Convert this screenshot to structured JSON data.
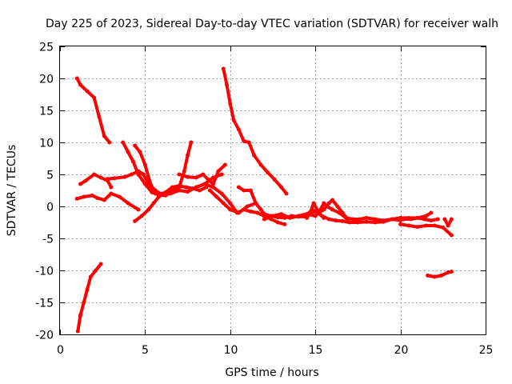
{
  "chart_data": {
    "type": "line",
    "title": "Day 225 of 2023, Sidereal Day-to-day VTEC variation (SDTVAR) for receiver walh",
    "xlabel": "GPS time / hours",
    "ylabel": "SDTVAR / TECUs",
    "xlim": [
      0,
      25
    ],
    "ylim": [
      -20,
      25
    ],
    "xticks": [
      0,
      5,
      10,
      15,
      20,
      25
    ],
    "yticks": [
      -20,
      -15,
      -10,
      -5,
      0,
      5,
      10,
      15,
      20,
      25
    ],
    "xtick_labels": [
      "0",
      "5",
      "10",
      "15",
      "20",
      "25"
    ],
    "ytick_labels": [
      "-20",
      "-15",
      "-10",
      "-5",
      "0",
      "5",
      "10",
      "15",
      "20",
      "25"
    ],
    "grid": true,
    "color": "#ff0000",
    "series": [
      {
        "name": "s1",
        "x": [
          1.0,
          1.2,
          1.6,
          2.0,
          2.3,
          2.6,
          2.9
        ],
        "y": [
          20,
          19,
          18,
          17,
          14,
          11,
          10
        ]
      },
      {
        "name": "s2",
        "x": [
          1.05,
          1.2,
          1.4,
          1.6,
          1.8,
          2.1,
          2.4
        ],
        "y": [
          -19.5,
          -17,
          -15,
          -13,
          -11,
          -10,
          -9
        ]
      },
      {
        "name": "s3",
        "x": [
          1.0,
          1.4,
          1.9,
          2.2,
          2.6,
          3.0,
          3.5,
          4.0,
          4.6
        ],
        "y": [
          1.2,
          1.5,
          1.7,
          1.3,
          1.0,
          2.0,
          1.5,
          0.5,
          -0.5
        ]
      },
      {
        "name": "s4",
        "x": [
          1.2,
          1.5,
          2.0,
          2.4,
          2.8,
          3.0
        ],
        "y": [
          3.5,
          4.0,
          5.0,
          4.5,
          4.0,
          3.0
        ]
      },
      {
        "name": "s5",
        "x": [
          2.8,
          3.2,
          3.8,
          4.2,
          4.6,
          4.9,
          5.2,
          5.6,
          6.0,
          6.5,
          7.0,
          7.5,
          8.0,
          8.5,
          9.0,
          9.5
        ],
        "y": [
          4.3,
          4.4,
          4.6,
          5.0,
          5.5,
          5.0,
          3.5,
          2.5,
          1.8,
          2.0,
          2.5,
          2.3,
          3.0,
          3.5,
          4.5,
          5.0
        ]
      },
      {
        "name": "s6",
        "x": [
          3.7,
          4.0,
          4.3,
          4.6,
          5.0,
          5.4,
          5.8,
          6.2
        ],
        "y": [
          10,
          8.5,
          7,
          5,
          3.5,
          2.2,
          1.8,
          1.7
        ]
      },
      {
        "name": "s7",
        "x": [
          4.4,
          4.7,
          5.0,
          5.2,
          5.4,
          5.6
        ],
        "y": [
          9.5,
          8.5,
          6.5,
          4.5,
          3.0,
          2.0
        ]
      },
      {
        "name": "s8",
        "x": [
          4.4,
          4.8,
          5.2,
          5.5,
          5.8,
          6.2,
          6.6,
          7.0,
          7.4,
          7.8,
          8.2,
          8.6
        ],
        "y": [
          -2.3,
          -1.5,
          -0.5,
          0.5,
          1.5,
          2.2,
          3.0,
          3.2,
          3.0,
          2.8,
          2.5,
          3.0
        ]
      },
      {
        "name": "s9",
        "x": [
          6.0,
          6.5,
          7.0,
          7.3,
          7.5,
          7.7
        ],
        "y": [
          2.0,
          2.3,
          3.0,
          5.5,
          8.0,
          10.0
        ]
      },
      {
        "name": "s10",
        "x": [
          7.0,
          7.5,
          8.0,
          8.4,
          8.7,
          9.0,
          9.3,
          9.7
        ],
        "y": [
          5.0,
          4.6,
          4.5,
          5.0,
          4.2,
          3.5,
          5.5,
          6.5
        ]
      },
      {
        "name": "s11",
        "x": [
          9.6,
          9.8,
          10.0,
          10.2,
          10.5,
          10.8,
          11.1,
          11.4,
          11.8,
          12.2,
          12.6,
          13.0,
          13.3
        ],
        "y": [
          21.5,
          19,
          16,
          13.5,
          12,
          10.2,
          10,
          8,
          6.5,
          5.3,
          4.2,
          3.0,
          2.0
        ]
      },
      {
        "name": "s12",
        "x": [
          8.0,
          8.5,
          9.0,
          9.5,
          10.0,
          10.4,
          10.8,
          11.2,
          11.6,
          12.0,
          12.4,
          12.8,
          13.2
        ],
        "y": [
          3.0,
          3.5,
          3.0,
          2.0,
          0.5,
          -1.0,
          -0.5,
          -0.8,
          -1.0,
          -1.5,
          -2.0,
          -2.5,
          -2.8
        ]
      },
      {
        "name": "s13",
        "x": [
          8.8,
          9.2,
          9.6,
          10.0,
          10.5,
          11.0,
          11.5
        ],
        "y": [
          2.5,
          1.5,
          0.5,
          -0.5,
          -1.0,
          0.0,
          0.5
        ]
      },
      {
        "name": "s14",
        "x": [
          10.5,
          10.8,
          11.2,
          11.5,
          11.8,
          12.0,
          12.4,
          12.8,
          13.2,
          13.6,
          14.0,
          14.4,
          14.8,
          15.2,
          15.5
        ],
        "y": [
          3.0,
          2.5,
          2.5,
          0.5,
          -0.5,
          -1.2,
          -1.5,
          -1.7,
          -1.8,
          -1.5,
          -1.6,
          -1.6,
          -0.5,
          -1.0,
          -1.8
        ]
      },
      {
        "name": "s15",
        "x": [
          12.0,
          12.5,
          13.0,
          13.5,
          14.0,
          14.5,
          15.0,
          15.3,
          15.5,
          15.7,
          16.0,
          16.4,
          16.8,
          17.2,
          17.6,
          18.0,
          18.5,
          19.0,
          19.5,
          20.0,
          20.5,
          21.0,
          21.5,
          21.8
        ],
        "y": [
          -2.0,
          -1.5,
          -1.2,
          -1.8,
          -1.5,
          -1.2,
          -1.5,
          -0.5,
          0.5,
          0.0,
          -0.5,
          -1.0,
          -1.8,
          -2.0,
          -2.0,
          -1.8,
          -2.0,
          -2.2,
          -2.0,
          -1.8,
          -1.8,
          -1.8,
          -1.5,
          -1.0
        ]
      },
      {
        "name": "s16",
        "x": [
          14.0,
          14.5,
          15.0,
          15.4,
          15.8,
          16.2,
          16.6,
          17.0,
          17.5,
          18.0,
          18.5,
          19.0,
          19.5,
          20.0
        ],
        "y": [
          -1.5,
          -1.2,
          -0.8,
          -1.5,
          -2.0,
          -2.2,
          -2.3,
          -2.5,
          -2.5,
          -2.4,
          -2.5,
          -2.4,
          -2.0,
          -2.2
        ]
      },
      {
        "name": "s17",
        "x": [
          14.5,
          14.7,
          14.9,
          15.2,
          15.5,
          15.8,
          16.0,
          16.3,
          16.6,
          16.9
        ],
        "y": [
          -1.8,
          -1.0,
          0.5,
          -1.0,
          -0.5,
          0.5,
          1.0,
          0.0,
          -1.0,
          -2.0
        ]
      },
      {
        "name": "s18",
        "x": [
          20.0,
          20.5,
          21.0,
          21.5,
          22.0,
          22.5,
          23.0
        ],
        "y": [
          -2.8,
          -3.0,
          -3.2,
          -3.0,
          -3.0,
          -3.3,
          -4.5
        ]
      },
      {
        "name": "s19",
        "x": [
          20.2,
          20.6,
          21.0,
          21.4,
          21.8,
          22.2
        ],
        "y": [
          -2.0,
          -2.0,
          -1.8,
          -2.0,
          -2.2,
          -2.0
        ]
      },
      {
        "name": "s20",
        "x": [
          22.6,
          22.8,
          23.0
        ],
        "y": [
          -2.0,
          -3.0,
          -2.0
        ]
      },
      {
        "name": "s21",
        "x": [
          21.6,
          22.0,
          22.4,
          22.8,
          23.0
        ],
        "y": [
          -10.8,
          -11.0,
          -10.8,
          -10.3,
          -10.2
        ]
      }
    ]
  }
}
